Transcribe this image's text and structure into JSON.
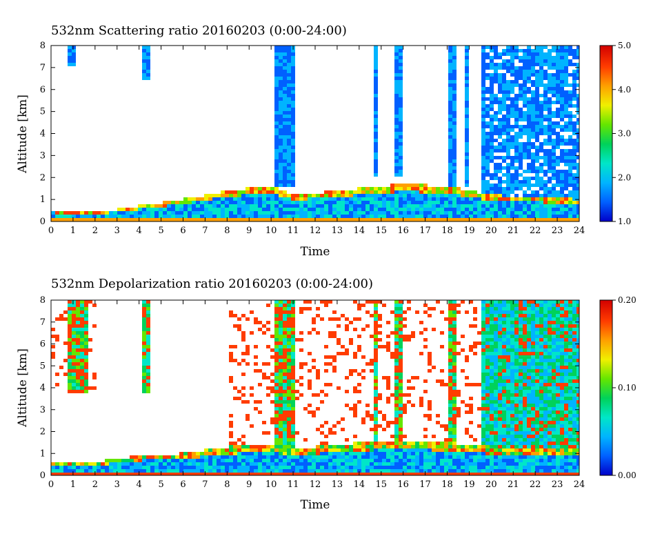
{
  "colors": {
    "colormap": [
      "#0000c8",
      "#0060ff",
      "#00b4ff",
      "#00e6c8",
      "#00d25a",
      "#64e600",
      "#f0f000",
      "#ffa000",
      "#ff3c00",
      "#d20000"
    ]
  },
  "chart_data": [
    {
      "type": "heatmap",
      "title": "532nm Scattering ratio  20160203 (0:00-24:00)",
      "xlabel": "Time",
      "ylabel": "Altitude [km]",
      "xlim": [
        0,
        24
      ],
      "ylim": [
        0,
        8
      ],
      "x_ticks": [
        "0",
        "1",
        "2",
        "3",
        "4",
        "5",
        "6",
        "7",
        "8",
        "9",
        "10",
        "11",
        "12",
        "13",
        "14",
        "15",
        "16",
        "17",
        "18",
        "19",
        "20",
        "21",
        "22",
        "23",
        "24"
      ],
      "y_ticks": [
        "0",
        "1",
        "2",
        "3",
        "4",
        "5",
        "6",
        "7",
        "8"
      ],
      "colorbar": {
        "range": [
          1.0,
          5.0
        ],
        "ticks": [
          "1.0",
          "2.0",
          "3.0",
          "4.0",
          "5.0"
        ]
      },
      "features": {
        "boundary_layer_top_km": [
          [
            0,
            0.5
          ],
          [
            2,
            0.4
          ],
          [
            4,
            0.7
          ],
          [
            6,
            1.0
          ],
          [
            8,
            1.4
          ],
          [
            10,
            1.6
          ],
          [
            11,
            1.2
          ],
          [
            14,
            1.5
          ],
          [
            16,
            1.7
          ],
          [
            18,
            1.6
          ],
          [
            20,
            1.2
          ],
          [
            24,
            1.0
          ]
        ],
        "cloud_columns": [
          [
            0.8,
            1.1,
            7.0,
            8.0
          ],
          [
            4.2,
            4.5,
            6.4,
            8.0
          ],
          [
            10.2,
            11.0,
            1.5,
            8.0
          ],
          [
            14.6,
            14.9,
            2.0,
            8.0
          ],
          [
            15.6,
            15.9,
            2.0,
            8.0
          ],
          [
            18.0,
            18.5,
            1.6,
            8.0
          ],
          [
            18.8,
            19.0,
            1.5,
            8.0
          ],
          [
            19.5,
            19.8,
            1.5,
            8.0
          ]
        ],
        "diffuse_layer_start_hour": 19.5
      }
    },
    {
      "type": "heatmap",
      "title": "532nm Depolarization ratio  20160203 (0:00-24:00)",
      "xlabel": "Time",
      "ylabel": "Altitude [km]",
      "xlim": [
        0,
        24
      ],
      "ylim": [
        0,
        8
      ],
      "x_ticks": [
        "0",
        "1",
        "2",
        "3",
        "4",
        "5",
        "6",
        "7",
        "8",
        "9",
        "10",
        "11",
        "12",
        "13",
        "14",
        "15",
        "16",
        "17",
        "18",
        "19",
        "20",
        "21",
        "22",
        "23",
        "24"
      ],
      "y_ticks": [
        "0",
        "1",
        "2",
        "3",
        "4",
        "5",
        "6",
        "7",
        "8"
      ],
      "colorbar": {
        "range": [
          0.0,
          0.2
        ],
        "ticks": [
          "0.00",
          "0.10",
          "0.20"
        ]
      },
      "features": {
        "boundary_layer_top_km": [
          [
            0,
            0.6
          ],
          [
            2,
            0.6
          ],
          [
            4,
            0.9
          ],
          [
            6,
            1.0
          ],
          [
            8,
            1.3
          ],
          [
            10,
            1.4
          ],
          [
            11,
            1.2
          ],
          [
            14,
            1.5
          ],
          [
            16,
            1.6
          ],
          [
            18,
            1.5
          ],
          [
            20,
            1.3
          ],
          [
            24,
            1.2
          ]
        ],
        "cloud_columns": [
          [
            0.8,
            1.6,
            3.8,
            8.0
          ],
          [
            4.2,
            4.5,
            3.8,
            8.0
          ],
          [
            10.2,
            11.0,
            1.0,
            8.0
          ],
          [
            14.6,
            14.9,
            1.0,
            8.0
          ],
          [
            15.6,
            15.9,
            1.0,
            8.0
          ],
          [
            18.0,
            18.5,
            1.0,
            8.0
          ]
        ],
        "diffuse_layer_start_hour": 19.5
      }
    }
  ]
}
